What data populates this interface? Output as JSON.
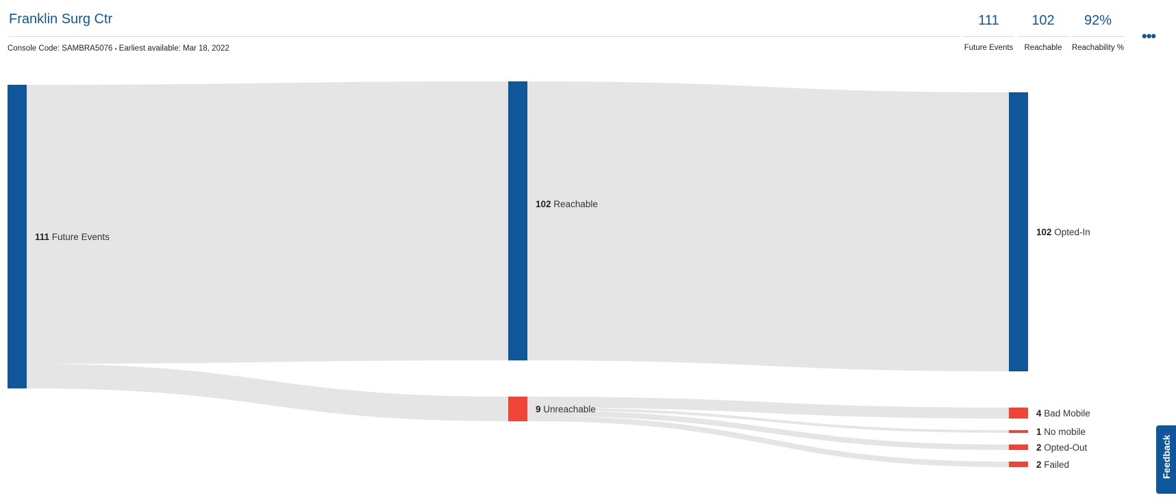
{
  "header": {
    "title": "Franklin Surg Ctr",
    "console_code_label": "Console Code: SAMBRA5076",
    "separator": "▪",
    "earliest_label": "Earliest available: Mar 18, 2022"
  },
  "stats": [
    {
      "value": "111",
      "label": "Future Events"
    },
    {
      "value": "102",
      "label": "Reachable"
    },
    {
      "value": "92%",
      "label": "Reachability %"
    }
  ],
  "more_label": "•••",
  "feedback_label": "Feedback",
  "colors": {
    "accent": "#10569a",
    "error": "#ef4438",
    "link": "#e5e5e5"
  },
  "chart_data": {
    "type": "sankey",
    "nodes": [
      {
        "id": "future",
        "value": 111,
        "label": "Future Events",
        "color": "#10569a"
      },
      {
        "id": "reach",
        "value": 102,
        "label": "Reachable",
        "color": "#10569a"
      },
      {
        "id": "unreach",
        "value": 9,
        "label": "Unreachable",
        "color": "#ef4438"
      },
      {
        "id": "optin",
        "value": 102,
        "label": "Opted-In",
        "color": "#10569a"
      },
      {
        "id": "badmobile",
        "value": 4,
        "label": "Bad Mobile",
        "color": "#ef4438"
      },
      {
        "id": "nomobile",
        "value": 1,
        "label": "No mobile",
        "color": "#ef4438"
      },
      {
        "id": "optout",
        "value": 2,
        "label": "Opted-Out",
        "color": "#ef4438"
      },
      {
        "id": "failed",
        "value": 2,
        "label": "Failed",
        "color": "#ef4438"
      }
    ],
    "links": [
      {
        "source": "future",
        "target": "reach",
        "value": 102
      },
      {
        "source": "future",
        "target": "unreach",
        "value": 9
      },
      {
        "source": "reach",
        "target": "optin",
        "value": 102
      },
      {
        "source": "unreach",
        "target": "badmobile",
        "value": 4
      },
      {
        "source": "unreach",
        "target": "nomobile",
        "value": 1
      },
      {
        "source": "unreach",
        "target": "optout",
        "value": 2
      },
      {
        "source": "unreach",
        "target": "failed",
        "value": 2
      }
    ]
  }
}
